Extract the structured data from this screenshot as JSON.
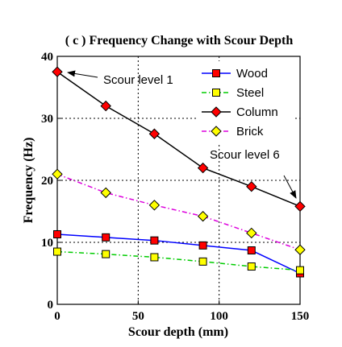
{
  "chart_data": {
    "type": "line",
    "title": "( c ) Frequency Change with Scour Depth",
    "xlabel": "Scour depth (mm)",
    "ylabel": "Frequency (Hz)",
    "xlim": [
      0,
      150
    ],
    "ylim": [
      0,
      40
    ],
    "x_ticks": [
      "0",
      "50",
      "100",
      "150"
    ],
    "y_ticks": [
      "0",
      "10",
      "20",
      "30",
      "40"
    ],
    "x_tick_values": [
      0,
      50,
      100,
      150
    ],
    "y_tick_values": [
      0,
      10,
      20,
      30,
      40
    ],
    "grid": true,
    "grid_style": "dotted",
    "legend_position": "top-right",
    "x": [
      0,
      30,
      60,
      90,
      120,
      150
    ],
    "series": [
      {
        "name": "Wood",
        "values": [
          11.3,
          10.8,
          10.3,
          9.5,
          8.7,
          5.0
        ],
        "color": "#0000ff",
        "marker_color": "#ff0000",
        "marker": "square",
        "dash": "solid"
      },
      {
        "name": "Steel",
        "values": [
          8.5,
          8.1,
          7.6,
          6.9,
          6.1,
          5.5
        ],
        "color": "#00cc00",
        "marker_color": "#ffff00",
        "marker": "square",
        "dash": "dashdot"
      },
      {
        "name": "Column",
        "values": [
          37.5,
          32.0,
          27.5,
          22.0,
          19.0,
          15.8
        ],
        "color": "#000000",
        "marker_color": "#ff0000",
        "marker": "diamond",
        "dash": "solid"
      },
      {
        "name": "Brick",
        "values": [
          21.0,
          18.0,
          16.0,
          14.2,
          11.5,
          8.8
        ],
        "color": "#dd00dd",
        "marker_color": "#ffff00",
        "marker": "diamond",
        "dash": "dashdot"
      }
    ],
    "annotations": [
      {
        "text": "Scour level 1",
        "points_to": {
          "x": 0,
          "y": 37.5
        }
      },
      {
        "text": "Scour level 6",
        "points_to": {
          "x": 150,
          "y": 15.8
        }
      }
    ]
  }
}
